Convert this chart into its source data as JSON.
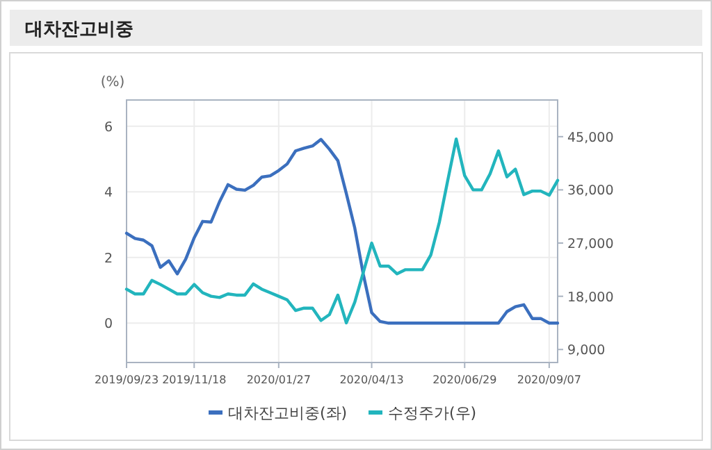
{
  "chart_data": {
    "type": "line",
    "title": "대차잔고비중",
    "ylabel": "(%)",
    "x": [
      "2019-09-23",
      "2019-09-30",
      "2019-10-07",
      "2019-10-14",
      "2019-10-21",
      "2019-10-28",
      "2019-11-04",
      "2019-11-11",
      "2019-11-18",
      "2019-11-25",
      "2019-12-02",
      "2019-12-09",
      "2019-12-16",
      "2019-12-23",
      "2019-12-30",
      "2020-01-06",
      "2020-01-13",
      "2020-01-20",
      "2020-01-27",
      "2020-02-03",
      "2020-02-10",
      "2020-02-17",
      "2020-02-24",
      "2020-03-02",
      "2020-03-09",
      "2020-03-16",
      "2020-03-23",
      "2020-03-30",
      "2020-04-06",
      "2020-04-13",
      "2020-04-20",
      "2020-04-27",
      "2020-05-04",
      "2020-05-11",
      "2020-05-18",
      "2020-05-25",
      "2020-06-01",
      "2020-06-08",
      "2020-06-15",
      "2020-06-22",
      "2020-06-29",
      "2020-07-06",
      "2020-07-13",
      "2020-07-20",
      "2020-07-27",
      "2020-08-03",
      "2020-08-10",
      "2020-08-17",
      "2020-08-24",
      "2020-08-31",
      "2020-09-07",
      "2020-09-14"
    ],
    "series": [
      {
        "name": "대차잔고비중(좌)",
        "color": "#3b6fbe",
        "values": [
          2.74,
          2.58,
          2.53,
          2.36,
          1.7,
          1.9,
          1.5,
          1.95,
          2.6,
          3.1,
          3.08,
          3.7,
          4.22,
          4.08,
          4.05,
          4.2,
          4.45,
          4.49,
          4.65,
          4.85,
          5.25,
          5.33,
          5.4,
          5.6,
          5.3,
          4.95,
          3.95,
          2.9,
          1.5,
          0.32,
          0.05,
          0,
          0,
          0,
          0,
          0,
          0,
          0,
          0,
          0,
          0,
          0,
          0,
          0,
          0,
          0.35,
          0.5,
          0.56,
          0.14,
          0.14,
          0,
          0
        ]
      },
      {
        "name": "수정주가(우)",
        "color": "#22b5bd",
        "axis": "y2",
        "values": [
          19200,
          18400,
          18400,
          20700,
          20000,
          19200,
          18400,
          18400,
          20000,
          18600,
          18000,
          17800,
          18400,
          18200,
          18200,
          20100,
          19200,
          18600,
          18000,
          17400,
          15600,
          16000,
          16000,
          13900,
          14900,
          18200,
          13500,
          17000,
          22000,
          27000,
          23100,
          23100,
          21800,
          22500,
          22500,
          22500,
          25000,
          30500,
          37600,
          44600,
          38400,
          36000,
          36000,
          38700,
          42600,
          38200,
          39500,
          35200,
          35800,
          35800,
          35100,
          37600
        ]
      }
    ],
    "xlim": [
      "2019-09-23",
      "2020-09-14"
    ],
    "xticks": [
      {
        "value": "2019-09-23",
        "label": "2019/09/23"
      },
      {
        "value": "2019-11-18",
        "label": "2019/11/18"
      },
      {
        "value": "2020-01-27",
        "label": "2020/01/27"
      },
      {
        "value": "2020-04-13",
        "label": "2020/04/13"
      },
      {
        "value": "2020-06-29",
        "label": "2020/06/29"
      },
      {
        "value": "2020-09-07",
        "label": "2020/09/07"
      }
    ],
    "ylim": [
      -1.2,
      6.8
    ],
    "yticks": [
      0,
      2,
      4,
      6
    ],
    "y2lim": [
      6800,
      51200
    ],
    "y2ticks": [
      {
        "value": 9000,
        "label": "9,000"
      },
      {
        "value": 18000,
        "label": "18,000"
      },
      {
        "value": 27000,
        "label": "27,000"
      },
      {
        "value": 36000,
        "label": "36,000"
      },
      {
        "value": 45000,
        "label": "45,000"
      }
    ],
    "grid": true,
    "legend": "bottom",
    "marker": "none",
    "line_style": "solid"
  }
}
